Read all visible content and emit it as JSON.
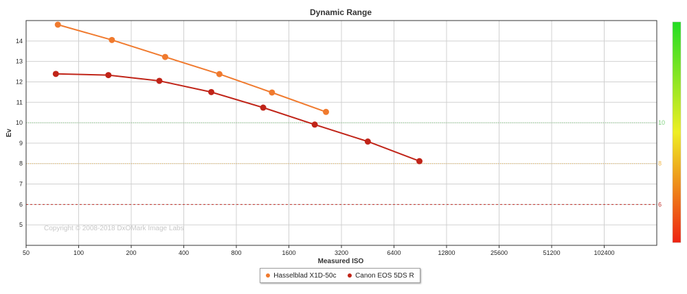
{
  "chart_data": {
    "type": "line",
    "title": "Dynamic Range",
    "xlabel": "Measured ISO",
    "ylabel": "Ev",
    "x_scale": "log2",
    "x_ticks": [
      50,
      100,
      200,
      400,
      800,
      1600,
      3200,
      6400,
      12800,
      25600,
      51200,
      102400
    ],
    "x_tick_labels": [
      "50",
      "100",
      "200",
      "400",
      "800",
      "1600",
      "3200",
      "6400",
      "12800",
      "25600",
      "51200",
      "102400"
    ],
    "xlim": [
      50,
      204800
    ],
    "y_ticks": [
      5,
      6,
      7,
      8,
      9,
      10,
      11,
      12,
      13,
      14
    ],
    "ylim": [
      4,
      15
    ],
    "grid": true,
    "reference_lines": [
      {
        "value": 10,
        "label": "10",
        "color": "#7fd27f",
        "style": "dotted"
      },
      {
        "value": 8,
        "label": "8",
        "color": "#f2b84b",
        "style": "dotted"
      },
      {
        "value": 6,
        "label": "6",
        "color": "#c0302a",
        "style": "dashed"
      }
    ],
    "watermark": "Copyright © 2008-2018 DxOMark Image Labs",
    "legend_position": "bottom-center",
    "series": [
      {
        "name": "Hasselblad X1D-50c",
        "color": "#f07a2e",
        "x": [
          76,
          155,
          313,
          640,
          1280,
          2610
        ],
        "y": [
          14.8,
          14.05,
          13.22,
          12.38,
          11.48,
          10.53
        ]
      },
      {
        "name": "Canon EOS 5DS R",
        "color": "#c02418",
        "x": [
          74,
          148,
          290,
          575,
          1140,
          2250,
          4530,
          8950
        ],
        "y": [
          12.39,
          12.33,
          12.05,
          11.5,
          10.74,
          9.91,
          9.08,
          8.12
        ]
      }
    ],
    "color_scale": {
      "from": "#22dd22",
      "via": "#eeee22",
      "to": "#ee2211"
    }
  }
}
